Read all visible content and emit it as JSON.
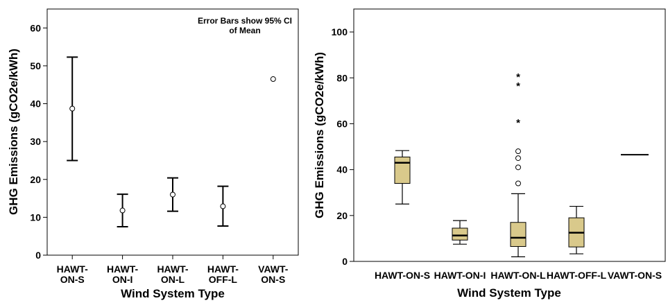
{
  "chart_data": [
    {
      "type": "errorbar",
      "xlabel": "Wind System Type",
      "ylabel": "GHG Emissions (gCO2e/kWh)",
      "note_lines": [
        "Error Bars show 95% CI",
        "of Mean"
      ],
      "ylim": [
        0,
        65
      ],
      "yticks": [
        "0",
        "10",
        "20",
        "30",
        "40",
        "50",
        "60"
      ],
      "grid": false,
      "categories": [
        {
          "lines": [
            "HAWT-",
            "ON-S"
          ]
        },
        {
          "lines": [
            "HAWT-",
            "ON-I"
          ]
        },
        {
          "lines": [
            "HAWT-",
            "ON-L"
          ]
        },
        {
          "lines": [
            "HAWT-",
            "OFF-L"
          ]
        },
        {
          "lines": [
            "VAWT-",
            "ON-S"
          ]
        }
      ],
      "series": [
        {
          "mean": 38.7,
          "ci_low": 25.0,
          "ci_high": 52.3
        },
        {
          "mean": 11.8,
          "ci_low": 7.5,
          "ci_high": 16.1
        },
        {
          "mean": 16.0,
          "ci_low": 11.6,
          "ci_high": 20.4
        },
        {
          "mean": 12.9,
          "ci_low": 7.7,
          "ci_high": 18.2
        },
        {
          "mean": 46.5,
          "ci_low": null,
          "ci_high": null
        }
      ]
    },
    {
      "type": "box",
      "xlabel": "Wind System Type",
      "ylabel": "GHG Emissions (gCO2e/kWh)",
      "ylim": [
        0,
        110
      ],
      "yticks": [
        "0",
        "20",
        "40",
        "60",
        "80",
        "100"
      ],
      "grid": false,
      "box_color": "#d9c98b",
      "categories": [
        "HAWT-ON-S",
        "HAWT-ON-I",
        "HAWT-ON-L",
        "HAWT-OFF-L",
        "VAWT-ON-S"
      ],
      "boxes": [
        {
          "min": 25.0,
          "q1": 34.0,
          "median": 43.0,
          "q3": 45.5,
          "max": 48.3,
          "outliers": [],
          "extremes": []
        },
        {
          "min": 7.5,
          "q1": 9.3,
          "median": 11.3,
          "q3": 14.5,
          "max": 17.8,
          "outliers": [],
          "extremes": []
        },
        {
          "min": 2.0,
          "q1": 6.5,
          "median": 10.3,
          "q3": 17.0,
          "max": 29.5,
          "outliers": [
            34,
            41,
            45,
            48
          ],
          "extremes": [
            61,
            77,
            81
          ]
        },
        {
          "min": 3.3,
          "q1": 6.3,
          "median": 12.5,
          "q3": 19.0,
          "max": 24.0,
          "outliers": [],
          "extremes": []
        },
        {
          "min": 46.5,
          "q1": 46.5,
          "median": 46.5,
          "q3": 46.5,
          "max": 46.5,
          "outliers": [],
          "extremes": []
        }
      ]
    }
  ]
}
